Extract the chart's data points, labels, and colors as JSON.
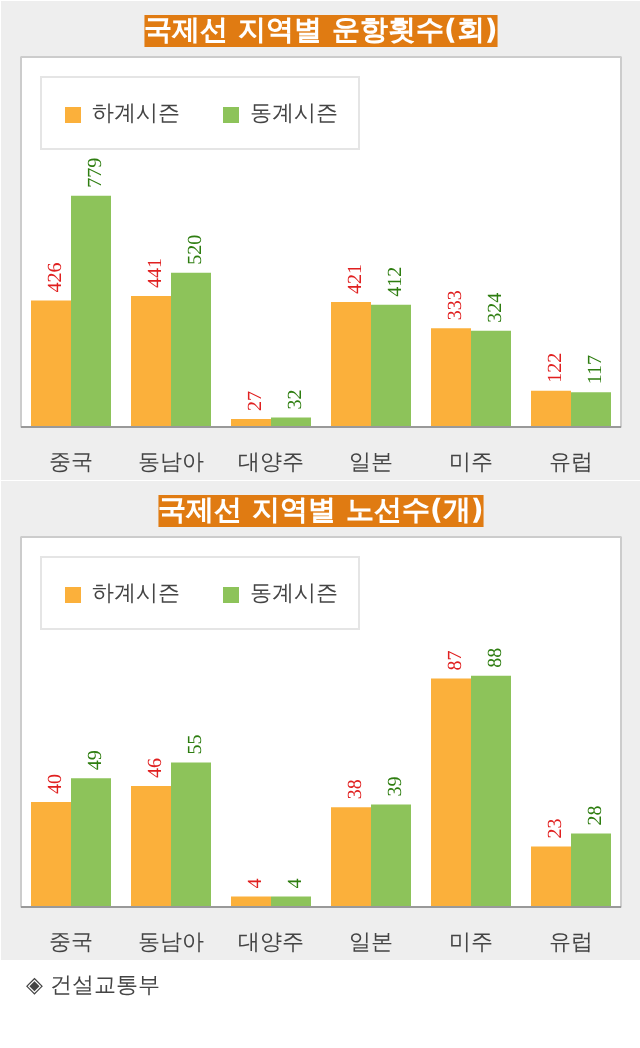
{
  "chart_data": [
    {
      "type": "bar",
      "title": "국제선 지역별 운항횟수(회)",
      "categories": [
        "중국",
        "동남아",
        "대양주",
        "일본",
        "미주",
        "유럽"
      ],
      "series": [
        {
          "name": "하계시즌",
          "color": "#fbb03b",
          "values": [
            426,
            441,
            27,
            421,
            333,
            122
          ]
        },
        {
          "name": "동계시즌",
          "color": "#8dc35a",
          "values": [
            779,
            520,
            32,
            412,
            324,
            117
          ]
        }
      ],
      "data_labels": true,
      "legend": "top left",
      "grid": false
    },
    {
      "type": "bar",
      "title": "국제선 지역별 노선수(개)",
      "categories": [
        "중국",
        "동남아",
        "대양주",
        "일본",
        "미주",
        "유럽"
      ],
      "series": [
        {
          "name": "하계시즌",
          "color": "#fbb03b",
          "values": [
            40,
            46,
            4,
            38,
            87,
            23
          ]
        },
        {
          "name": "동계시즌",
          "color": "#8dc35a",
          "values": [
            49,
            55,
            4,
            39,
            88,
            28
          ]
        }
      ],
      "data_labels": true,
      "legend": "top left",
      "grid": false,
      "annotations": [
        "◈ 건설교통부"
      ]
    }
  ]
}
